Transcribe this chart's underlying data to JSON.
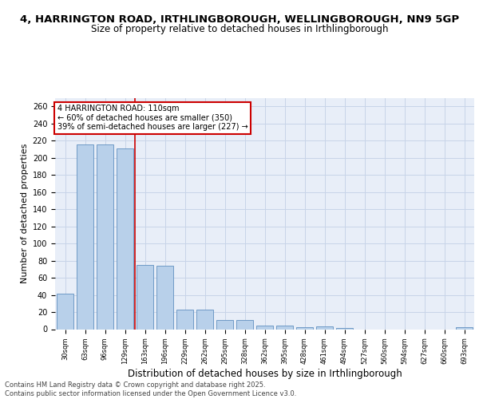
{
  "title": "4, HARRINGTON ROAD, IRTHLINGBOROUGH, WELLINGBOROUGH, NN9 5GP",
  "subtitle": "Size of property relative to detached houses in Irthlingborough",
  "xlabel": "Distribution of detached houses by size in Irthlingborough",
  "ylabel": "Number of detached properties",
  "categories": [
    "30sqm",
    "63sqm",
    "96sqm",
    "129sqm",
    "163sqm",
    "196sqm",
    "229sqm",
    "262sqm",
    "295sqm",
    "328sqm",
    "362sqm",
    "395sqm",
    "428sqm",
    "461sqm",
    "494sqm",
    "527sqm",
    "560sqm",
    "594sqm",
    "627sqm",
    "660sqm",
    "693sqm"
  ],
  "values": [
    41,
    216,
    216,
    211,
    75,
    74,
    23,
    23,
    11,
    11,
    4,
    4,
    2,
    3,
    1,
    0,
    0,
    0,
    0,
    0,
    2
  ],
  "bar_color": "#b8d0ea",
  "bar_edge_color": "#6090c0",
  "grid_color": "#c8d4e8",
  "background_color": "#e8eef8",
  "red_line_x": 3.5,
  "annotation_text": "4 HARRINGTON ROAD: 110sqm\n← 60% of detached houses are smaller (350)\n39% of semi-detached houses are larger (227) →",
  "annotation_box_color": "#ffffff",
  "annotation_border_color": "#cc0000",
  "ylim": [
    0,
    270
  ],
  "yticks": [
    0,
    20,
    40,
    60,
    80,
    100,
    120,
    140,
    160,
    180,
    200,
    220,
    240,
    260
  ],
  "footer": "Contains HM Land Registry data © Crown copyright and database right 2025.\nContains public sector information licensed under the Open Government Licence v3.0.",
  "title_fontsize": 9.5,
  "subtitle_fontsize": 8.5,
  "ylabel_fontsize": 8,
  "xlabel_fontsize": 8.5,
  "footer_fontsize": 6
}
